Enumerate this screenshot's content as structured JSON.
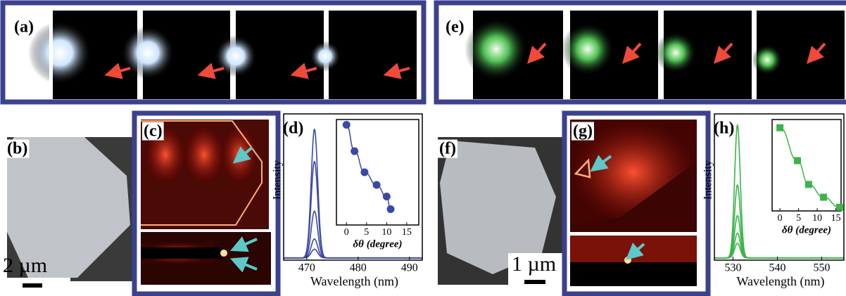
{
  "panels": {
    "labels": [
      "(a)",
      "(b)",
      "(c)",
      "(d)",
      "(e)",
      "(f)",
      "(g)",
      "(h)"
    ],
    "scale_bars": [
      "2 µm",
      "1 µm"
    ]
  },
  "chart_data": [
    {
      "type": "line",
      "x_label": "Wavelength (nm)",
      "y_label": "Intensity",
      "xlim": [
        465.5,
        492.5
      ],
      "xticks": [
        470,
        480,
        490
      ],
      "ylim": [
        0,
        1
      ],
      "peak": 471.5,
      "color": "#3b49a6",
      "amplitudes": [
        0.88,
        0.66,
        0.32,
        0.13,
        0.06
      ],
      "inset": {
        "type": "scatter",
        "x_label": "δθ (degree)",
        "xlim": [
          -2.5,
          18
        ],
        "xticks": [
          0,
          5,
          10,
          15
        ],
        "ylim": [
          0,
          1
        ],
        "marker": "circle",
        "x": [
          0,
          2,
          4.5,
          7.5,
          10,
          11
        ],
        "values": [
          0.95,
          0.7,
          0.5,
          0.38,
          0.27,
          0.15
        ]
      }
    },
    {
      "type": "line",
      "x_label": "Wavelength (nm)",
      "y_label": "Intensity",
      "xlim": [
        525.8,
        555
      ],
      "xticks": [
        530,
        540,
        550
      ],
      "ylim": [
        0,
        1
      ],
      "peak": 531,
      "color": "#3cb44a",
      "amplitudes": [
        0.91,
        0.5,
        0.29,
        0.17,
        0.1
      ],
      "inset": {
        "type": "scatter",
        "x_label": "δθ (degree)",
        "xlim": [
          -2.1,
          16.4
        ],
        "xticks": [
          0,
          5,
          10,
          15
        ],
        "ylim": [
          0,
          1
        ],
        "marker": "square",
        "x": [
          0,
          4.7,
          7.7,
          11.7,
          16
        ],
        "values": [
          0.91,
          0.55,
          0.29,
          0.15,
          0.04
        ]
      }
    }
  ]
}
